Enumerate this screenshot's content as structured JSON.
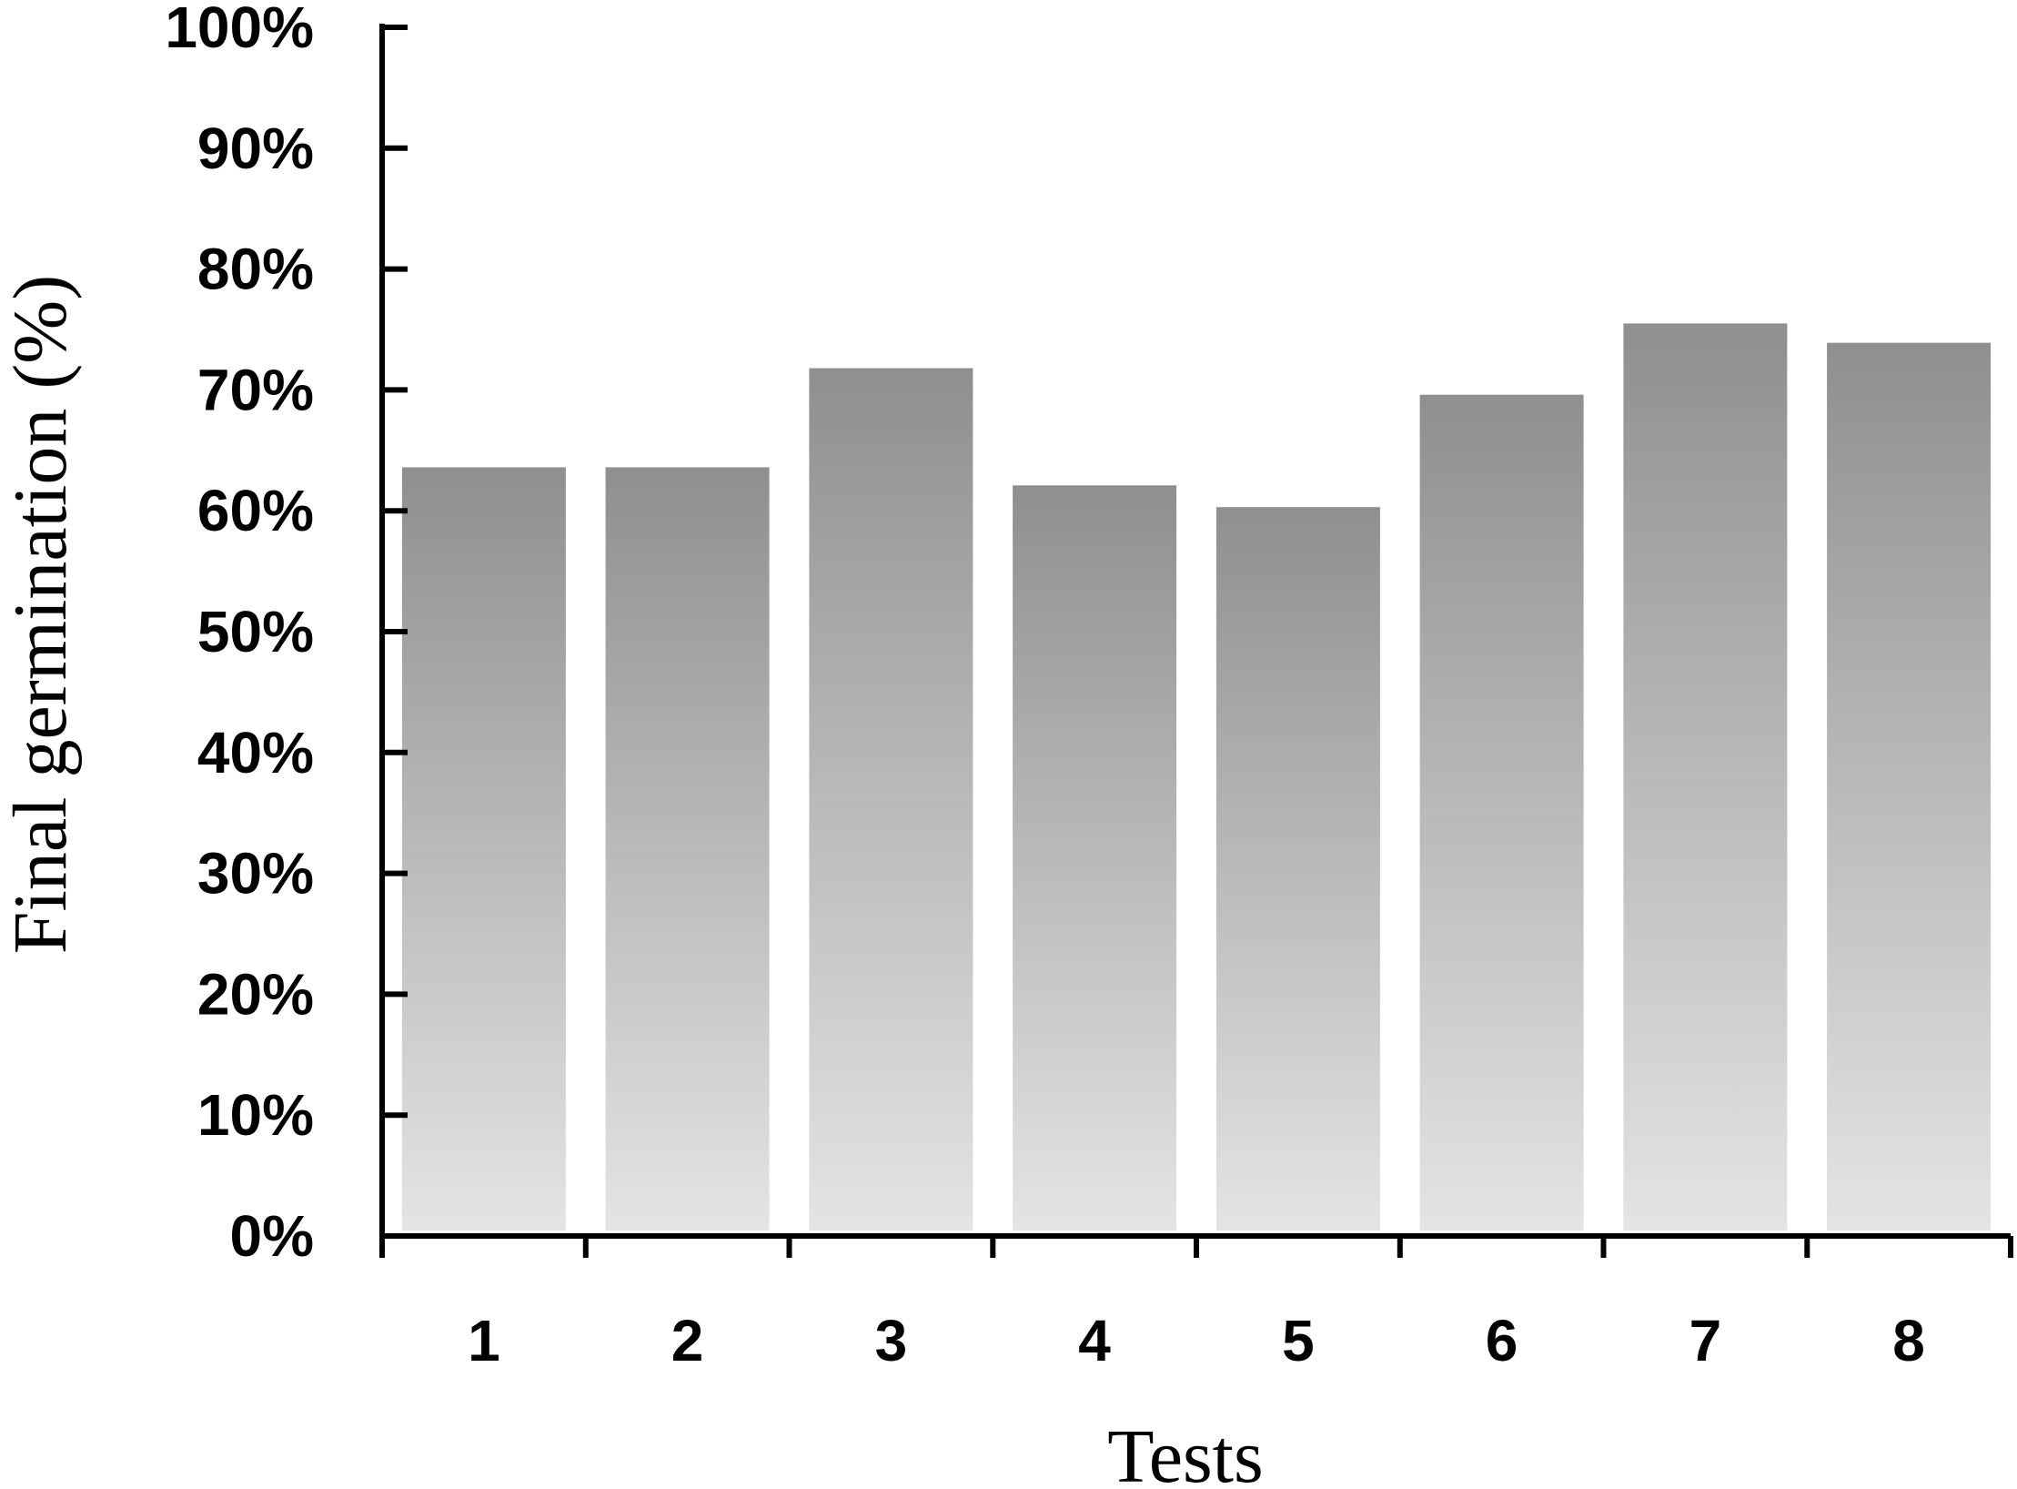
{
  "chart_data": {
    "type": "bar",
    "categories": [
      "1",
      "2",
      "3",
      "4",
      "5",
      "6",
      "7",
      "8"
    ],
    "values": [
      63.6,
      63.6,
      71.8,
      62.1,
      60.3,
      69.6,
      75.5,
      73.9
    ],
    "xlabel": "Tests",
    "ylabel": "Final germination (%)",
    "ylim": [
      0,
      100
    ],
    "yticks": [
      "0%",
      "10%",
      "20%",
      "30%",
      "40%",
      "50%",
      "60%",
      "70%",
      "80%",
      "90%",
      "100%"
    ],
    "grid": false,
    "legend": "none",
    "colors": {
      "bar_top": "#8f8f8f",
      "bar_bottom": "#e4e4e4",
      "axis": "#000000"
    }
  }
}
